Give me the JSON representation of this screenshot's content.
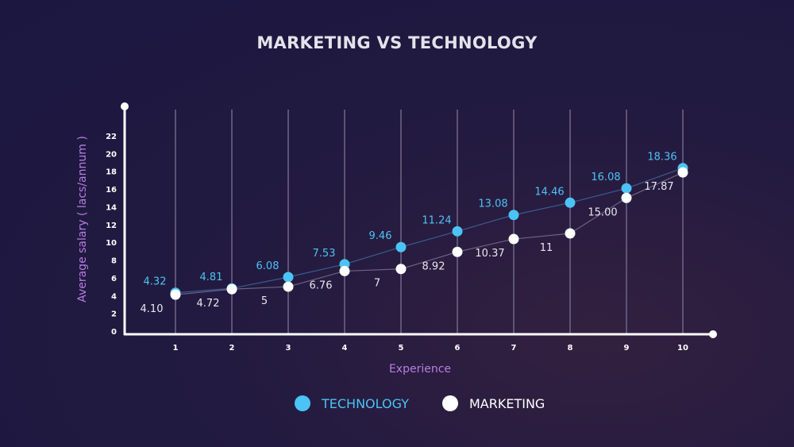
{
  "chart_data": {
    "type": "line",
    "title": "MARKETING VS TECHNOLOGY",
    "xlabel": "Experience",
    "ylabel": "Average salary ( lacs/annum )",
    "x": [
      1,
      2,
      3,
      4,
      5,
      6,
      7,
      8,
      9,
      10
    ],
    "x_ticks": [
      "1",
      "2",
      "3",
      "4",
      "5",
      "6",
      "7",
      "8",
      "9",
      "10"
    ],
    "y_ticks": [
      "0",
      "2",
      "4",
      "6",
      "8",
      "10",
      "12",
      "14",
      "16",
      "18",
      "20",
      "22"
    ],
    "ylim": [
      0,
      22
    ],
    "grid": "vertical lines at each x",
    "legend_position": "bottom",
    "series": [
      {
        "name": "TECHNOLOGY",
        "color": "#4cc3f5",
        "values": [
          4.32,
          4.81,
          6.08,
          7.53,
          9.46,
          11.24,
          13.08,
          14.46,
          16.08,
          18.36
        ],
        "labels": [
          "4.32",
          "4.81",
          "6.08",
          "7.53",
          "9.46",
          "11.24",
          "13.08",
          "14.46",
          "16.08",
          "18.36"
        ]
      },
      {
        "name": "MARKETING",
        "color": "#ffffff",
        "values": [
          4.1,
          4.72,
          5,
          6.76,
          7,
          8.92,
          10.37,
          11,
          15.0,
          17.87
        ],
        "labels": [
          "4.10",
          "4.72",
          "5",
          "6.76",
          "7",
          "8.92",
          "10.37",
          "11",
          "15.00",
          "17.87"
        ]
      }
    ]
  },
  "colors": {
    "axis_label": "#b77ee0",
    "axis": "#ffffff",
    "grid": "#6b6283"
  }
}
